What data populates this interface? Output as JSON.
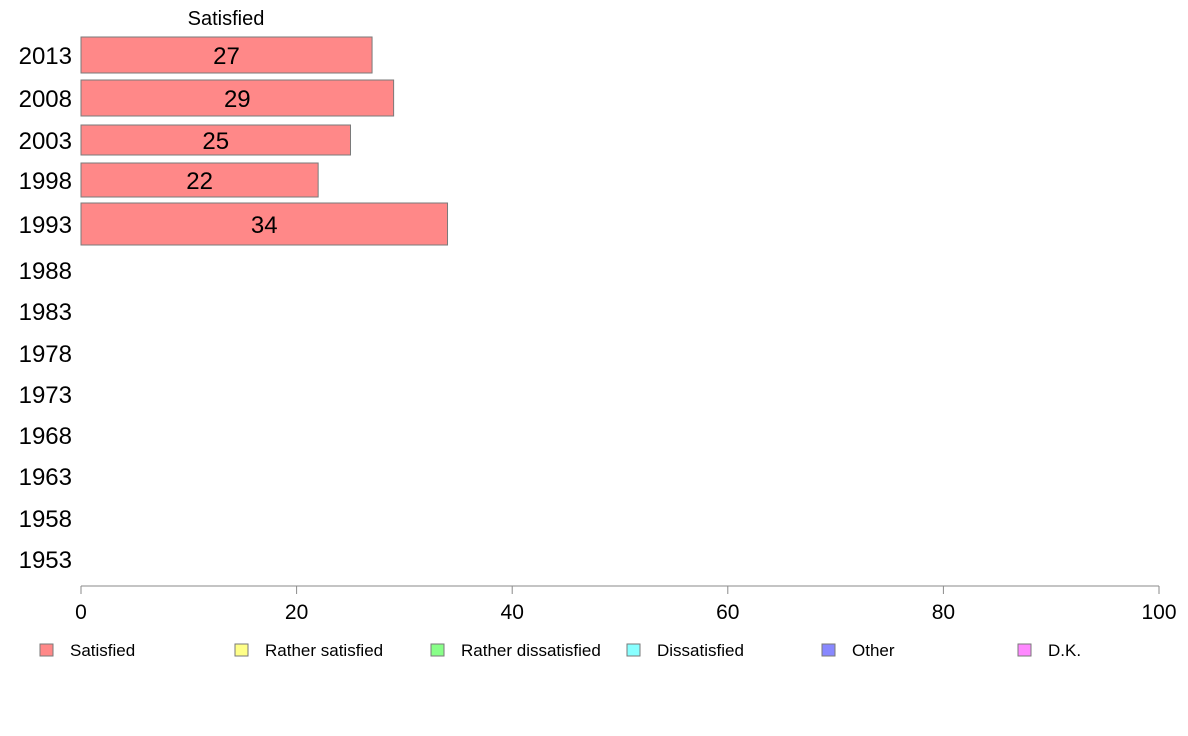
{
  "chart_data": {
    "type": "bar",
    "orientation": "horizontal",
    "stacked": true,
    "column_title": "Satisfied",
    "categories": [
      "2013",
      "2008",
      "2003",
      "1998",
      "1993",
      "1988",
      "1983",
      "1978",
      "1973",
      "1968",
      "1963",
      "1958",
      "1953"
    ],
    "series": [
      {
        "name": "Satisfied",
        "color": "#ff8888",
        "values": [
          27,
          29,
          25,
          22,
          34,
          null,
          null,
          null,
          null,
          null,
          null,
          null,
          null
        ]
      },
      {
        "name": "Rather satisfied",
        "color": "#ffff88",
        "values": [
          null,
          null,
          null,
          null,
          null,
          null,
          null,
          null,
          null,
          null,
          null,
          null,
          null
        ]
      },
      {
        "name": "Rather dissatisfied",
        "color": "#88ff88",
        "values": [
          null,
          null,
          null,
          null,
          null,
          null,
          null,
          null,
          null,
          null,
          null,
          null,
          null
        ]
      },
      {
        "name": "Dissatisfied",
        "color": "#88ffff",
        "values": [
          null,
          null,
          null,
          null,
          null,
          null,
          null,
          null,
          null,
          null,
          null,
          null,
          null
        ]
      },
      {
        "name": "Other",
        "color": "#8888ff",
        "values": [
          null,
          null,
          null,
          null,
          null,
          null,
          null,
          null,
          null,
          null,
          null,
          null,
          null
        ]
      },
      {
        "name": "D.K.",
        "color": "#ff88ff",
        "values": [
          null,
          null,
          null,
          null,
          null,
          null,
          null,
          null,
          null,
          null,
          null,
          null,
          null
        ]
      }
    ],
    "data_labels": [
      "27",
      "29",
      "25",
      "22",
      "34"
    ],
    "xlim": [
      0,
      100
    ],
    "xticks": [
      0,
      20,
      40,
      60,
      80,
      100
    ],
    "xlabel": "",
    "ylabel": "",
    "grid": false,
    "legend_position": "bottom"
  }
}
